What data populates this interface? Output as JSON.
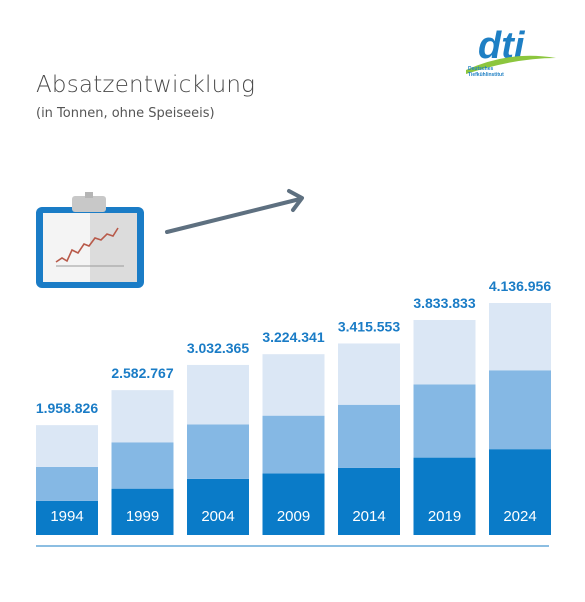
{
  "header": {
    "title": "Absatzentwicklung",
    "subtitle": "(in Tonnen, ohne Speiseeis)"
  },
  "logo": {
    "wordmark": "dti",
    "line1": "Deutsches",
    "line2": "Tiefkühlinstitut"
  },
  "colors": {
    "dark": "#0a7bc8",
    "mid": "#85b8e4",
    "light": "#dbe7f5",
    "value_text": "#1a7cc6",
    "arrow": "#5e7080",
    "logo_blue": "#1e7fc4",
    "logo_green": "#8cc63e"
  },
  "chart_data": {
    "type": "bar",
    "categories": [
      "1994",
      "1999",
      "2004",
      "2009",
      "2014",
      "2019",
      "2024"
    ],
    "values": [
      1958826,
      2582767,
      3032365,
      3224341,
      3415553,
      3833833,
      4136956
    ],
    "value_labels": [
      "1.958.826",
      "2.582.767",
      "3.032.365",
      "3.224.341",
      "3.415.553",
      "3.833.833",
      "4.136.956"
    ],
    "stack_fractions": {
      "dark": [
        0.31,
        0.32,
        0.33,
        0.34,
        0.35,
        0.36,
        0.37
      ],
      "mid": [
        0.31,
        0.32,
        0.32,
        0.32,
        0.33,
        0.34,
        0.34
      ],
      "light": [
        0.38,
        0.36,
        0.35,
        0.34,
        0.32,
        0.3,
        0.29
      ]
    },
    "title": "Absatzentwicklung",
    "xlabel": "",
    "ylabel": "",
    "ylim": [
      0,
      4136956
    ]
  }
}
